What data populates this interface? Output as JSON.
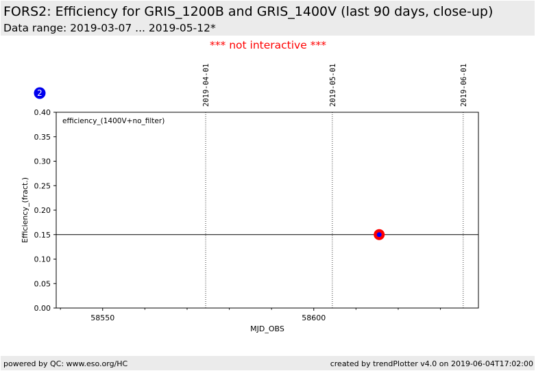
{
  "header": {
    "title": "FORS2: Efficiency for GRIS_1200B and GRIS_1400V (last 90 days, close-up)",
    "subtitle": "Data range: 2019-03-07 ... 2019-05-12*"
  },
  "notice": "*** not interactive ***",
  "footer": {
    "left": "powered by QC: www.eso.org/HC",
    "right": "created by trendPlotter v4.0 on 2019-06-04T17:02:00"
  },
  "colors": {
    "notice": "#ff0000",
    "badge": "#0000ee",
    "marker_outer": "#ff0000",
    "marker_inner": "#0000ff",
    "panel_bg": "#ebebeb"
  },
  "chart_data": {
    "type": "scatter",
    "panel_number": "2",
    "legend_text": "efficiency_(1400V+no_filter)",
    "legend_position": "top-left",
    "xlabel": "MJD_OBS",
    "ylabel": "Efficiency_(fract.)",
    "xlim": [
      58539,
      58639
    ],
    "ylim": [
      0,
      0.4
    ],
    "x_ticks": [
      58550,
      58600
    ],
    "x_minor_ticks": [
      58540,
      58560,
      58570,
      58580,
      58590,
      58610,
      58620,
      58630
    ],
    "x_tick_labels": [
      "58550",
      "58600"
    ],
    "y_ticks": [
      0,
      0.05,
      0.1,
      0.15,
      0.2,
      0.25,
      0.3,
      0.35,
      0.4
    ],
    "y_tick_labels": [
      "0.00",
      "0.05",
      "0.10",
      "0.15",
      "0.20",
      "0.25",
      "0.30",
      "0.35",
      "0.40"
    ],
    "reference_line_y": 0.15,
    "date_markers": [
      {
        "x": 58574.4,
        "label": "2019-04-01"
      },
      {
        "x": 58604.4,
        "label": "2019-05-01"
      },
      {
        "x": 58635.4,
        "label": "2019-06-01"
      }
    ],
    "points": [
      {
        "x": 58615.5,
        "y": 0.15
      }
    ]
  }
}
